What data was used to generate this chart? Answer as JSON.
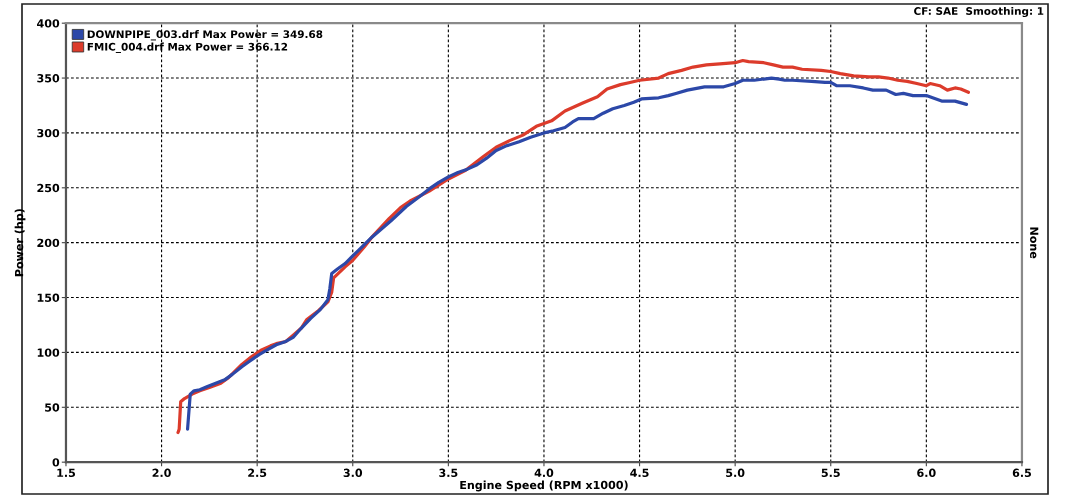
{
  "chart_data": {
    "type": "line",
    "annotations": [
      "CF: SAE  Smoothing: 1"
    ],
    "xlabel": "Engine Speed (RPM x1000)",
    "ylabel": "Power (hp)",
    "y2label": "None",
    "xlim": [
      1.5,
      6.5
    ],
    "xticks": [
      {
        "value": 1.5,
        "label": "1.5"
      },
      {
        "value": 2,
        "label": "2.0"
      },
      {
        "value": 2.5,
        "label": "2.5"
      },
      {
        "value": 3,
        "label": "3.0"
      },
      {
        "value": 3.5,
        "label": "3.5"
      },
      {
        "value": 4,
        "label": "4.0"
      },
      {
        "value": 4.5,
        "label": "4.5"
      },
      {
        "value": 5,
        "label": "5.0"
      },
      {
        "value": 5.5,
        "label": "5.5"
      },
      {
        "value": 6,
        "label": "6.0"
      },
      {
        "value": 6.5,
        "label": "6.5"
      }
    ],
    "ylim": [
      0,
      400
    ],
    "yticks": [
      0,
      50,
      100,
      150,
      200,
      250,
      300,
      350,
      400
    ],
    "grid": true,
    "legend": "top left",
    "marker": "none",
    "line_style": "solid",
    "series": [
      {
        "name": "DOWNPIPE_003.drf Max Power = 349.68",
        "color": "#2c48a8",
        "x": [
          2.136,
          2.15,
          2.17,
          2.2,
          2.24,
          2.3,
          2.33,
          2.37,
          2.42,
          2.46,
          2.51,
          2.55,
          2.6,
          2.65,
          2.69,
          2.73,
          2.78,
          2.83,
          2.87,
          2.88,
          2.89,
          2.92,
          2.96,
          3.0,
          3.03,
          3.1,
          3.2,
          3.28,
          3.35,
          3.4,
          3.45,
          3.5,
          3.55,
          3.6,
          3.65,
          3.7,
          3.75,
          3.8,
          3.87,
          3.93,
          4.0,
          4.05,
          4.11,
          4.15,
          4.18,
          4.26,
          4.31,
          4.36,
          4.42,
          4.47,
          4.51,
          4.6,
          4.65,
          4.69,
          4.75,
          4.84,
          4.94,
          5.0,
          5.04,
          5.1,
          5.19,
          5.23,
          5.26,
          5.3,
          5.4,
          5.47,
          5.5,
          5.53,
          5.6,
          5.67,
          5.72,
          5.79,
          5.84,
          5.88,
          5.93,
          6.0,
          6.08,
          6.15,
          6.21
        ],
        "values": [
          30,
          62,
          65,
          66,
          69,
          73,
          75,
          80,
          87,
          92,
          98,
          102,
          107,
          110,
          114,
          122,
          131,
          139,
          148,
          158,
          172,
          176,
          181,
          188,
          193,
          205,
          220,
          233,
          242,
          249,
          255,
          260,
          264,
          267,
          271,
          277,
          284,
          288,
          292,
          296,
          300,
          302,
          305,
          310,
          313,
          313,
          318,
          322,
          325,
          328,
          331,
          332,
          334,
          336,
          339,
          342,
          342,
          345,
          348,
          348,
          350,
          349,
          348,
          348,
          347,
          346,
          346,
          343,
          343,
          341,
          339,
          339,
          335,
          336,
          334,
          334,
          329,
          329,
          326
        ]
      },
      {
        "name": "FMIC_004.drf Max Power = 366.12",
        "color": "#dc3b2b",
        "x": [
          2.086,
          2.092,
          2.1,
          2.12,
          2.16,
          2.2,
          2.25,
          2.31,
          2.35,
          2.42,
          2.47,
          2.52,
          2.57,
          2.6,
          2.65,
          2.69,
          2.73,
          2.76,
          2.82,
          2.87,
          2.89,
          2.9,
          2.96,
          3.0,
          3.06,
          3.1,
          3.19,
          3.25,
          3.3,
          3.4,
          3.5,
          3.59,
          3.68,
          3.75,
          3.82,
          3.89,
          3.96,
          4.04,
          4.11,
          4.2,
          4.28,
          4.33,
          4.4,
          4.45,
          4.5,
          4.6,
          4.65,
          4.72,
          4.78,
          4.85,
          4.92,
          5.0,
          5.04,
          5.07,
          5.15,
          5.2,
          5.25,
          5.3,
          5.35,
          5.45,
          5.5,
          5.55,
          5.62,
          5.7,
          5.75,
          5.8,
          5.85,
          5.9,
          5.95,
          6.0,
          6.02,
          6.07,
          6.11,
          6.15,
          6.18,
          6.22
        ],
        "values": [
          27,
          30,
          55,
          58,
          62,
          65,
          68,
          72,
          77,
          89,
          96,
          102,
          106,
          108,
          110,
          116,
          122,
          130,
          138,
          146,
          155,
          168,
          178,
          184,
          196,
          205,
          222,
          232,
          238,
          247,
          258,
          266,
          278,
          287,
          293,
          298,
          306,
          311,
          320,
          327,
          333,
          340,
          344,
          346,
          348,
          350,
          354,
          357,
          360,
          362,
          363,
          364,
          366,
          365,
          364,
          362,
          360,
          360,
          358,
          357,
          356,
          354,
          352,
          351,
          351,
          350,
          348,
          347,
          345,
          343,
          345,
          343,
          339,
          341,
          340,
          337
        ]
      }
    ]
  }
}
